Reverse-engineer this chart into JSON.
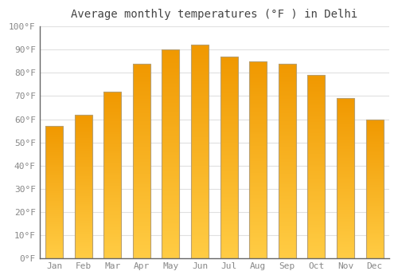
{
  "title": "Average monthly temperatures (°F ) in Delhi",
  "months": [
    "Jan",
    "Feb",
    "Mar",
    "Apr",
    "May",
    "Jun",
    "Jul",
    "Aug",
    "Sep",
    "Oct",
    "Nov",
    "Dec"
  ],
  "values": [
    57,
    62,
    72,
    84,
    90,
    92,
    87,
    85,
    84,
    79,
    69,
    60
  ],
  "bar_color_bottom": "#FFCC44",
  "bar_color_top": "#F5A000",
  "bar_edge_color": "#B8A070",
  "ylim": [
    0,
    100
  ],
  "yticks": [
    0,
    10,
    20,
    30,
    40,
    50,
    60,
    70,
    80,
    90,
    100
  ],
  "ytick_labels": [
    "0°F",
    "10°F",
    "20°F",
    "30°F",
    "40°F",
    "50°F",
    "60°F",
    "70°F",
    "80°F",
    "90°F",
    "100°F"
  ],
  "bg_color": "#FFFFFF",
  "grid_color": "#E0E0E0",
  "title_fontsize": 10,
  "tick_fontsize": 8,
  "tick_color": "#888888",
  "font_family": "monospace",
  "bar_width": 0.6
}
